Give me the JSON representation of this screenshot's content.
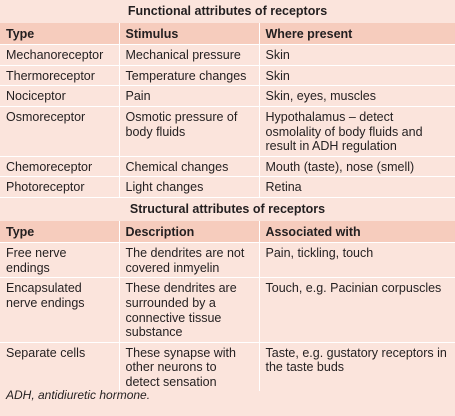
{
  "functional": {
    "title": "Functional attributes of receptors",
    "headers": [
      "Type",
      "Stimulus",
      "Where present"
    ],
    "rows": [
      [
        "Mechanoreceptor",
        "Mechanical pressure",
        "Skin"
      ],
      [
        "Thermoreceptor",
        "Temperature changes",
        "Skin"
      ],
      [
        "Nociceptor",
        "Pain",
        "Skin, eyes, muscles"
      ],
      [
        "Osmoreceptor",
        "Osmotic pressure of body fluids",
        "Hypothalamus – detect osmolality of body fluids and result in ADH regulation"
      ],
      [
        "Chemoreceptor",
        "Chemical changes",
        "Mouth (taste), nose (smell)"
      ],
      [
        "Photoreceptor",
        "Light changes",
        "Retina"
      ]
    ]
  },
  "structural": {
    "title": "Structural attributes of receptors",
    "headers": [
      "Type",
      "Description",
      "Associated with"
    ],
    "rows": [
      [
        "Free nerve endings",
        "The dendrites are not covered inmyelin",
        "Pain, tickling, touch"
      ],
      [
        "Encapsulated nerve endings",
        "These dendrites are surrounded by a connective tissue substance",
        "Touch, e.g. Pacinian corpuscles"
      ],
      [
        "Separate cells",
        "These synapse with other neurons to detect sensation",
        "Taste, e.g. gustatory receptors in the taste buds"
      ]
    ]
  },
  "footnote": "ADH, antidiuretic hormone."
}
